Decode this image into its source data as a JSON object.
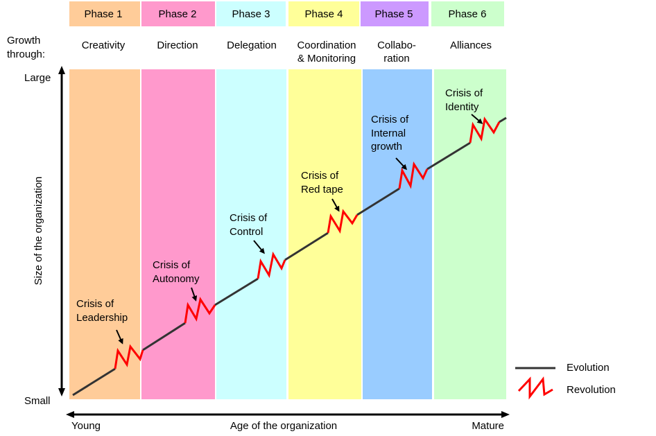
{
  "phases": [
    {
      "label": "Phase 1",
      "growth": [
        "Creativity"
      ],
      "color": "#ffcc99",
      "header_color": "#ffcc99"
    },
    {
      "label": "Phase 2",
      "growth": [
        "Direction"
      ],
      "color": "#ff99cc",
      "header_color": "#ff99cc"
    },
    {
      "label": "Phase 3",
      "growth": [
        "Delegation"
      ],
      "color": "#ccffff",
      "header_color": "#ccffff"
    },
    {
      "label": "Phase 4",
      "growth": [
        "Coordination",
        "& Monitoring"
      ],
      "color": "#ffff99",
      "header_color": "#ffff99"
    },
    {
      "label": "Phase 5",
      "growth": [
        "Collabo-",
        "ration"
      ],
      "color": "#99ccff",
      "header_color": "#cc99ff"
    },
    {
      "label": "Phase 6",
      "growth": [
        "Alliances"
      ],
      "color": "#ccffcc",
      "header_color": "#ccffcc"
    }
  ],
  "growth_through": [
    "Growth",
    "through:"
  ],
  "crises": [
    [
      "Crisis of",
      "Leadership"
    ],
    [
      "Crisis of",
      "Autonomy"
    ],
    [
      "Crisis of",
      "Control"
    ],
    [
      "Crisis of",
      "Red tape"
    ],
    [
      "Crisis of",
      "Internal",
      "growth"
    ],
    [
      "Crisis of",
      "Identity"
    ]
  ],
  "y_axis": {
    "label": "Size of the organization",
    "top": "Large",
    "bottom": "Small"
  },
  "x_axis": {
    "label": "Age of the organization",
    "left": "Young",
    "right": "Mature"
  },
  "legend": {
    "evolution": "Evolution",
    "revolution": "Revolution",
    "evolution_color": "#333333",
    "revolution_color": "#ff0000"
  }
}
